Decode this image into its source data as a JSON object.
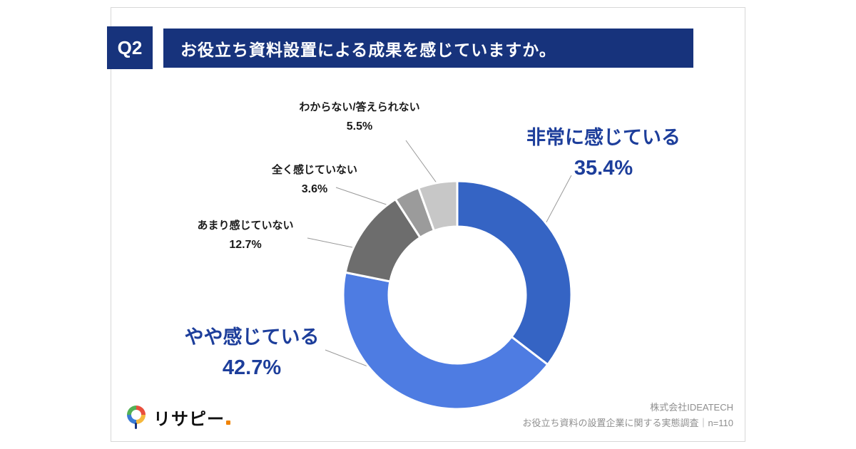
{
  "header": {
    "q_label": "Q2",
    "title": "お役立ち資料設置による成果を感じていますか。"
  },
  "chart_data": {
    "type": "pie",
    "subtype": "donut",
    "title": "お役立ち資料設置による成果を感じていますか。",
    "unit": "%",
    "start_angle_deg": 0,
    "direction": "clockwise",
    "inner_radius_ratio": 0.6,
    "segments": [
      {
        "label": "非常に感じている",
        "value": 35.4,
        "display": "35.4%",
        "color": "#3564c4"
      },
      {
        "label": "やや感じている",
        "value": 42.7,
        "display": "42.7%",
        "color": "#4e7ce2"
      },
      {
        "label": "あまり感じていない",
        "value": 12.7,
        "display": "12.7%",
        "color": "#6d6d6d"
      },
      {
        "label": "全く感じていない",
        "value": 3.6,
        "display": "3.6%",
        "color": "#9b9b9b"
      },
      {
        "label": "わからない/答えられない",
        "value": 5.5,
        "display": "5.5%",
        "color": "#c7c7c7"
      }
    ]
  },
  "footer": {
    "logo_text": "リサピー",
    "company": "株式会社IDEATECH",
    "survey_note": "お役立ち資料の設置企業に関する実態調査｜n=110"
  },
  "colors": {
    "navy": "#17337c",
    "label_navy": "#1d3e9b"
  }
}
